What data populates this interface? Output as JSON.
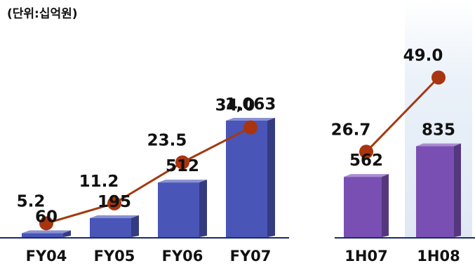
{
  "chart_data": {
    "type": "bar",
    "unit_label": "(단위:십억원)",
    "groups": [
      {
        "categories": [
          "FY04",
          "FY05",
          "FY06",
          "FY07"
        ],
        "bars": [
          60,
          195,
          512,
          1063
        ],
        "bar_labels": [
          "60",
          "195",
          "512",
          "1,063"
        ],
        "line": [
          5.2,
          11.2,
          23.5,
          34.0
        ],
        "line_labels": [
          "5.2",
          "11.2",
          "23.5",
          "34.0"
        ],
        "bar_color": "#4a55b8"
      },
      {
        "categories": [
          "1H07",
          "1H08"
        ],
        "bars": [
          562,
          835
        ],
        "bar_labels": [
          "562",
          "835"
        ],
        "line": [
          26.7,
          49.0
        ],
        "line_labels": [
          "26.7",
          "49.0"
        ],
        "bar_color": "#7a4fb4"
      }
    ],
    "bar_ylim": [
      0,
      1100
    ],
    "line_ylim": [
      0,
      55
    ],
    "line_color": "#a23a12",
    "marker_color": "#a8350f",
    "axis_color": "#1a2b6b",
    "highlight_color": "#e6eef8",
    "grid": false
  }
}
